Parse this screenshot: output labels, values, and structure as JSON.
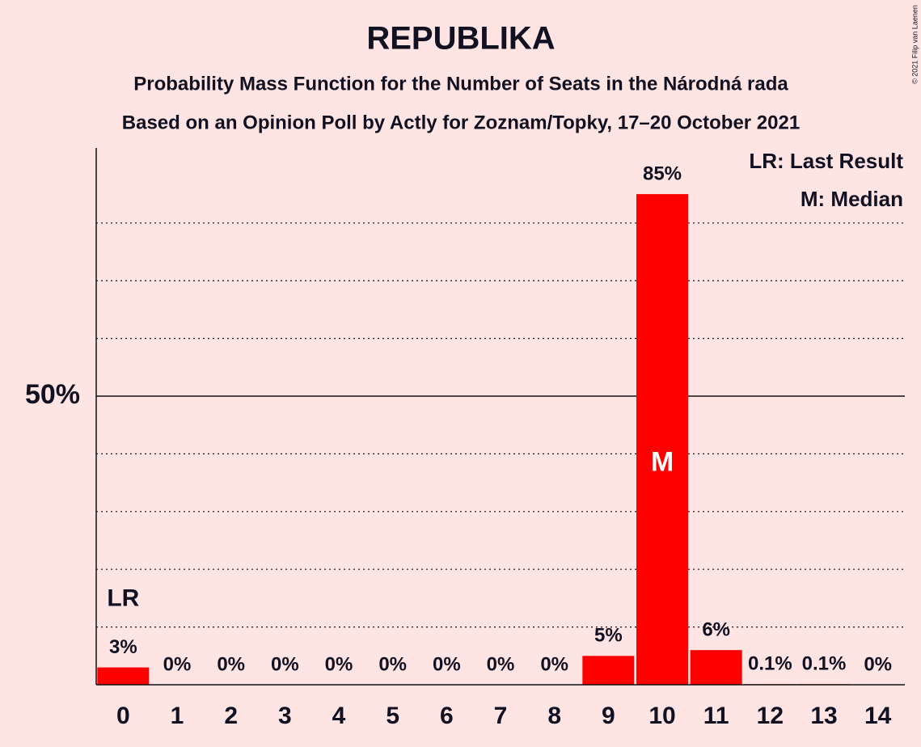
{
  "chart_data": {
    "type": "bar",
    "title": "REPUBLIKA",
    "subtitles": [
      "Probability Mass Function for the Number of Seats in the Národná rada",
      "Based on an Opinion Poll by Actly for Zoznam/Topky, 17–20 October 2021"
    ],
    "categories": [
      "0",
      "1",
      "2",
      "3",
      "4",
      "5",
      "6",
      "7",
      "8",
      "9",
      "10",
      "11",
      "12",
      "13",
      "14"
    ],
    "values": [
      3,
      0,
      0,
      0,
      0,
      0,
      0,
      0,
      0,
      5,
      85,
      6,
      0.1,
      0.1,
      0
    ],
    "value_labels": [
      "3%",
      "0%",
      "0%",
      "0%",
      "0%",
      "0%",
      "0%",
      "0%",
      "0%",
      "5%",
      "85%",
      "6%",
      "0.1%",
      "0.1%",
      "0%"
    ],
    "color": "#ff0000",
    "ylim": [
      0,
      93
    ],
    "yticks": [
      {
        "value": 50,
        "label": "50%"
      }
    ],
    "minor_yticks": [
      10,
      20,
      30,
      40,
      60,
      70,
      80
    ],
    "last_result": {
      "category": "0",
      "label": "LR"
    },
    "median": {
      "category": "10",
      "label": "M"
    },
    "legend": [
      "LR: Last Result",
      "M: Median"
    ],
    "copyright": "© 2021 Filip van Laenen"
  }
}
